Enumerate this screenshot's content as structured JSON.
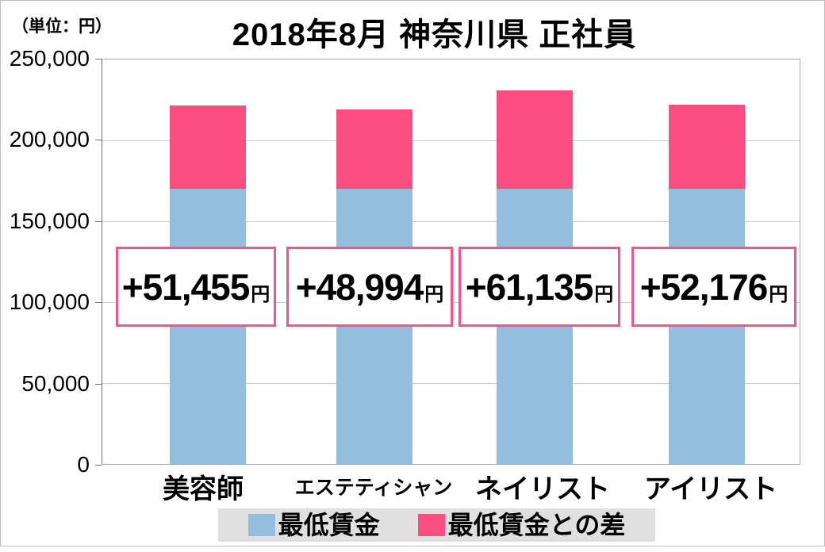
{
  "meta": {
    "unit_label": "（単位：円）",
    "title": "2018年8月 神奈川県 正社員"
  },
  "y_axis": {
    "tick_labels": [
      "250,000",
      "200,000",
      "150,000",
      "100,000",
      "50,000",
      "0"
    ],
    "min": 0,
    "max": 250000,
    "step": 50000
  },
  "chart_data": {
    "type": "bar",
    "stacked": true,
    "title": "2018年8月 神奈川県 正社員",
    "categories": [
      "美容師",
      "エステティシャン",
      "ネイリスト",
      "アイリスト"
    ],
    "series": [
      {
        "name": "最低賃金",
        "color": "#93bede",
        "values": [
          170000,
          170000,
          170000,
          170000
        ]
      },
      {
        "name": "最低賃金との差",
        "color": "#fa4e82",
        "values": [
          51455,
          48994,
          61135,
          52176
        ]
      }
    ],
    "totals": [
      221455,
      218994,
      231135,
      222176
    ],
    "bar_labels": [
      "+51,455",
      "+48,994",
      "+61,135",
      "+52,176"
    ],
    "bar_label_suffix": "円",
    "ylim": [
      0,
      250000
    ],
    "grid": true,
    "legend_position": "bottom"
  },
  "legend": {
    "items": [
      {
        "label": "最低賃金",
        "color": "#93bede"
      },
      {
        "label": "最低賃金との差",
        "color": "#fa4e82"
      }
    ]
  },
  "colors": {
    "bar_blue": "#93bede",
    "bar_pink": "#fa4e82",
    "label_box_border": "#f9538c",
    "legend_background": "#e0e0e0",
    "gridline": "#c9c9c9"
  }
}
